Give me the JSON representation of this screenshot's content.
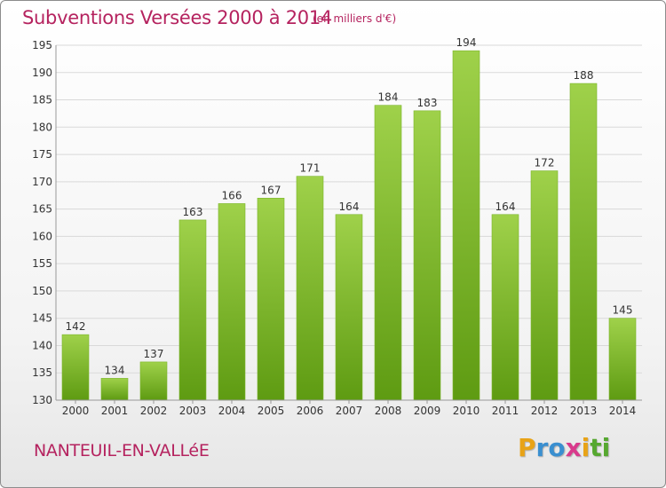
{
  "header": {
    "title": "Subventions Versées 2000 à 2014",
    "unit": "(en milliers d'€)"
  },
  "footer": {
    "commune": "NANTEUIL-EN-VALLéE",
    "brand": {
      "letters": [
        "P",
        "r",
        "o",
        "x",
        "i",
        "t",
        "i"
      ],
      "colors": [
        "#e8a317",
        "#3a8fd0",
        "#3a8fd0",
        "#d93a8c",
        "#e8a317",
        "#56a830",
        "#56a830"
      ]
    }
  },
  "colors": {
    "accent": "#b5235f",
    "bar_top": "#9fd14a",
    "bar_bottom": "#5e9b12",
    "grid": "#d9d9d9",
    "axis_text": "#333333"
  },
  "chart_data": {
    "type": "bar",
    "categories": [
      "2000",
      "2001",
      "2002",
      "2003",
      "2004",
      "2005",
      "2006",
      "2007",
      "2008",
      "2009",
      "2010",
      "2011",
      "2012",
      "2013",
      "2014"
    ],
    "values": [
      142,
      134,
      137,
      163,
      166,
      167,
      171,
      164,
      184,
      183,
      194,
      164,
      172,
      188,
      145
    ],
    "title": "Subventions Versées 2000 à 2014",
    "ylim": [
      130,
      195
    ],
    "yticks": [
      130,
      135,
      140,
      145,
      150,
      155,
      160,
      165,
      170,
      175,
      180,
      185,
      190,
      195
    ],
    "grid": true,
    "data_labels": true
  }
}
